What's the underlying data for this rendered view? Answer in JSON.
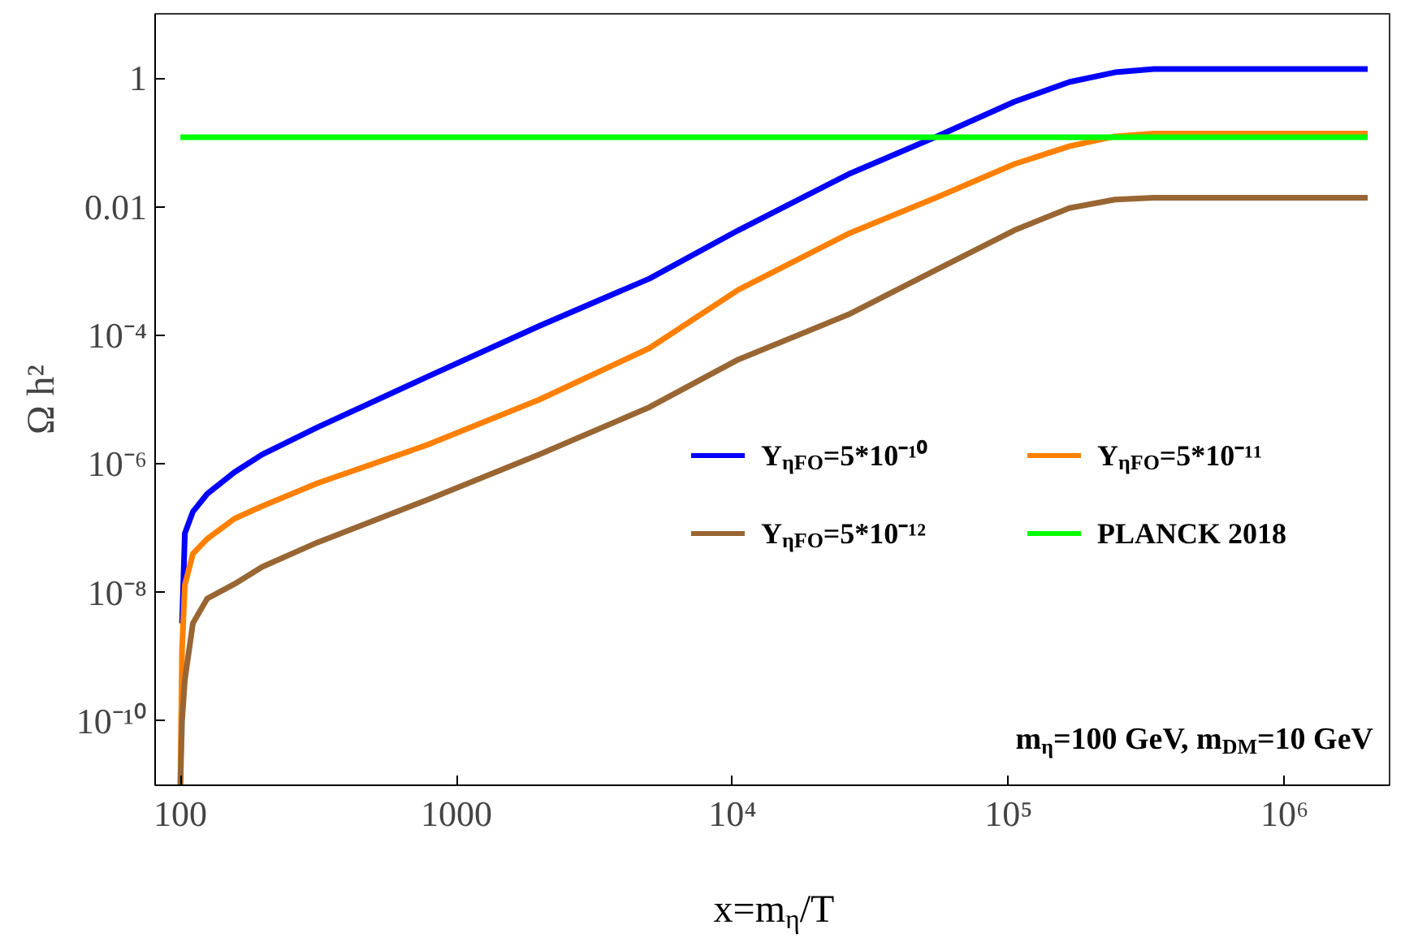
{
  "chart_data": {
    "type": "line",
    "xlabel": "x=m$_{η}$/T",
    "ylabel": "Ω h²",
    "log": "xy",
    "grid": false,
    "legend": "right",
    "marker": "none",
    "line_style": "solid",
    "xlim": [
      81,
      2400000
    ],
    "ylim": [
      1e-11,
      10
    ],
    "xticks": [
      100,
      1000,
      {
        "value": 10000,
        "label": "10⁴"
      },
      {
        "value": 100000,
        "label": "10⁵"
      },
      {
        "value": 1000000,
        "label": "10⁶"
      }
    ],
    "yticks": [
      {
        "value": 1e-10,
        "label": "10⁻¹⁰"
      },
      {
        "value": 1e-08,
        "label": "10⁻⁸"
      },
      {
        "value": 1e-06,
        "label": "10⁻⁶"
      },
      {
        "value": 0.0001,
        "label": "10⁻⁴"
      },
      0.01,
      1
    ],
    "x": [
      100,
      101.4,
      103.8,
      111,
      125,
      157,
      198,
      314,
      791,
      2000,
      5000,
      10500,
      26300,
      55000,
      105000,
      166000,
      243000,
      336000,
      2000000
    ],
    "series": [
      {
        "name": "Y$_{ηFO}$=5*10⁻¹⁰",
        "color": "#0000ff",
        "values": [
          null,
          3.3e-09,
          8.3e-08,
          1.8e-07,
          3.4e-07,
          7.4e-07,
          1.4e-06,
          3.7e-06,
          2.3e-05,
          0.00014,
          0.00076,
          0.0043,
          0.032,
          0.124,
          0.43,
          0.87,
          1.23,
          1.38,
          1.38
        ]
      },
      {
        "name": "Y$_{ηFO}$=5*10⁻¹¹",
        "color": "#ff8000",
        "values": [
          1e-11,
          1.3e-09,
          1.3e-08,
          4e-08,
          6.8e-08,
          1.4e-07,
          2.2e-07,
          5e-07,
          2e-06,
          1e-05,
          6.3e-05,
          0.00051,
          0.0038,
          0.014,
          0.046,
          0.087,
          0.124,
          0.137,
          0.137
        ]
      },
      {
        "name": "Y$_{ηFO}$=5*10⁻¹²",
        "color": "#996633",
        "values": [
          1e-11,
          1e-10,
          4.4e-10,
          3.3e-09,
          8e-09,
          1.35e-08,
          2.5e-08,
          6e-08,
          2.8e-07,
          1.4e-06,
          7.6e-06,
          4.2e-05,
          0.00021,
          0.00105,
          0.0043,
          0.0095,
          0.0129,
          0.0138,
          0.0138
        ]
      },
      {
        "name": "PLANCK 2018",
        "color": "#00ff00",
        "x": [
          100,
          2000000
        ],
        "values": [
          0.12,
          0.12
        ]
      }
    ],
    "annotations": [
      "m$_{η}$=100 GeV, m$_{DM}$=10 GeV"
    ]
  }
}
